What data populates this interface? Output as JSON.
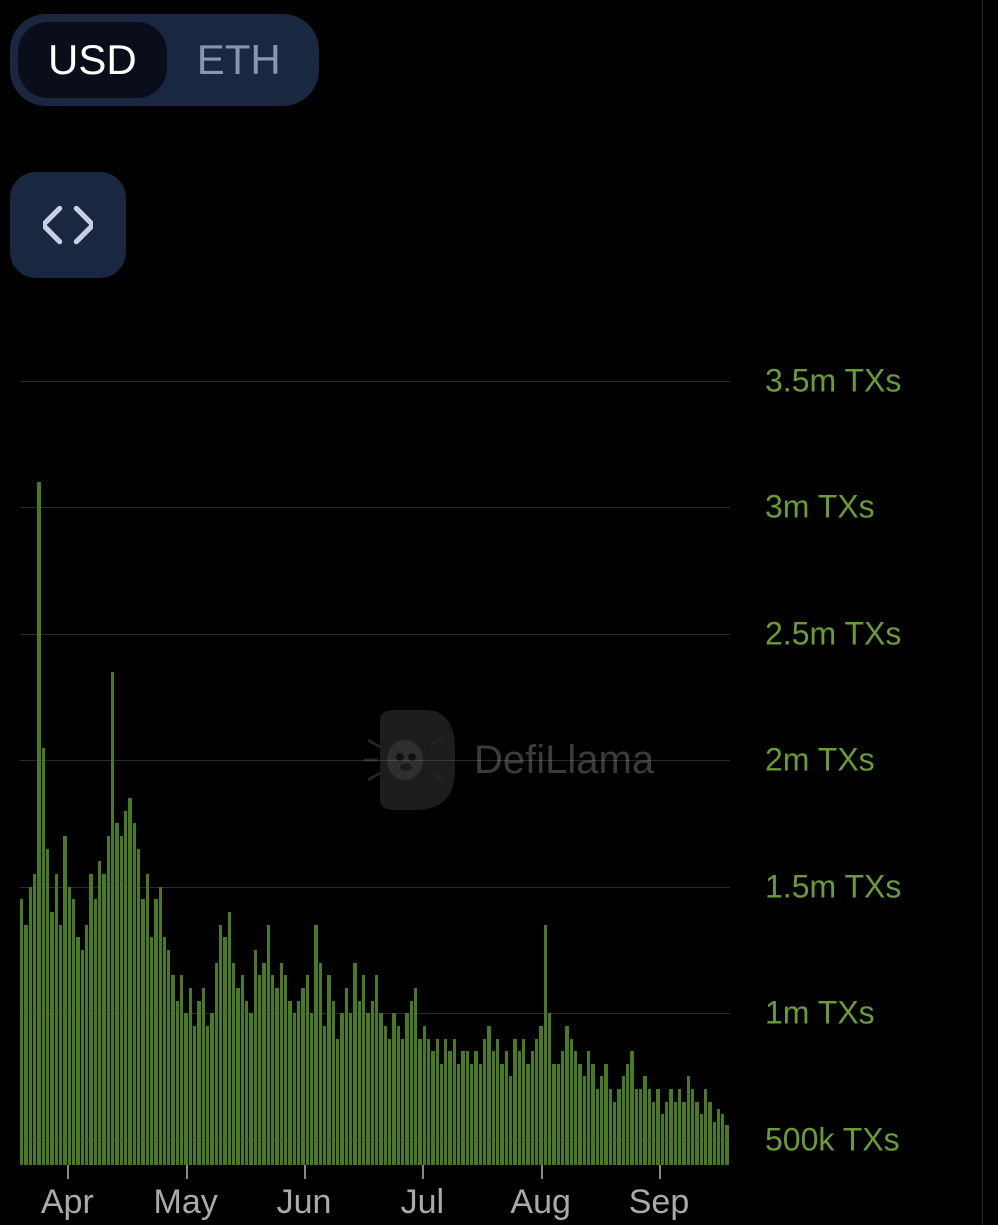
{
  "toggle": {
    "options": [
      "USD",
      "ETH"
    ],
    "active_index": 0,
    "bg_color": "#1a2740",
    "active_bg": "#0a0e1a",
    "active_text": "#ffffff",
    "inactive_text": "#8a95b0"
  },
  "embed_button": {
    "icon": "code-icon",
    "bg_color": "#1a2740"
  },
  "watermark": {
    "text": "DefiLlama",
    "text_color": "#aaaaaa",
    "opacity": 0.35
  },
  "chart": {
    "type": "bar",
    "background_color": "#000000",
    "bar_color": "#4a7a1f",
    "grid_color": "#2a2a2a",
    "y_axis": {
      "label_color": "#6b9b37",
      "label_fontsize": 32,
      "min": 400000,
      "max": 3700000,
      "ticks": [
        {
          "value": 3500000,
          "label": "3.5m TXs"
        },
        {
          "value": 3000000,
          "label": "3m TXs"
        },
        {
          "value": 2500000,
          "label": "2.5m TXs"
        },
        {
          "value": 2000000,
          "label": "2m TXs"
        },
        {
          "value": 1500000,
          "label": "1.5m TXs"
        },
        {
          "value": 1000000,
          "label": "1m TXs"
        },
        {
          "value": 500000,
          "label": "500k TXs"
        }
      ]
    },
    "x_axis": {
      "label_color": "#aaaaaa",
      "label_fontsize": 34,
      "ticks": [
        "Apr",
        "May",
        "Jun",
        "Jul",
        "Aug",
        "Sep"
      ]
    },
    "values": [
      1450000,
      1350000,
      1500000,
      1550000,
      3100000,
      2050000,
      1650000,
      1400000,
      1550000,
      1350000,
      1700000,
      1500000,
      1450000,
      1300000,
      1250000,
      1350000,
      1550000,
      1450000,
      1600000,
      1550000,
      1700000,
      2350000,
      1750000,
      1700000,
      1800000,
      1850000,
      1750000,
      1650000,
      1450000,
      1550000,
      1300000,
      1450000,
      1500000,
      1300000,
      1250000,
      1150000,
      1050000,
      1150000,
      1000000,
      1100000,
      950000,
      1050000,
      1100000,
      950000,
      1000000,
      1200000,
      1350000,
      1300000,
      1400000,
      1200000,
      1100000,
      1150000,
      1050000,
      1000000,
      1250000,
      1150000,
      1200000,
      1350000,
      1150000,
      1100000,
      1200000,
      1150000,
      1050000,
      1000000,
      1050000,
      1100000,
      1150000,
      1000000,
      1350000,
      1200000,
      950000,
      1150000,
      1050000,
      900000,
      1000000,
      1100000,
      1000000,
      1200000,
      1050000,
      1150000,
      1000000,
      1050000,
      1150000,
      1000000,
      950000,
      900000,
      1000000,
      950000,
      900000,
      1000000,
      1050000,
      1100000,
      900000,
      950000,
      900000,
      850000,
      900000,
      800000,
      900000,
      850000,
      900000,
      800000,
      850000,
      850000,
      800000,
      850000,
      800000,
      900000,
      950000,
      850000,
      900000,
      800000,
      850000,
      750000,
      900000,
      850000,
      900000,
      800000,
      850000,
      900000,
      950000,
      1350000,
      1000000,
      800000,
      800000,
      850000,
      950000,
      900000,
      850000,
      800000,
      750000,
      850000,
      800000,
      700000,
      750000,
      800000,
      700000,
      650000,
      700000,
      750000,
      800000,
      850000,
      700000,
      700000,
      750000,
      700000,
      650000,
      700000,
      600000,
      650000,
      700000,
      650000,
      700000,
      650000,
      750000,
      700000,
      650000,
      600000,
      700000,
      650000,
      570000,
      620000,
      600000,
      560000
    ]
  }
}
